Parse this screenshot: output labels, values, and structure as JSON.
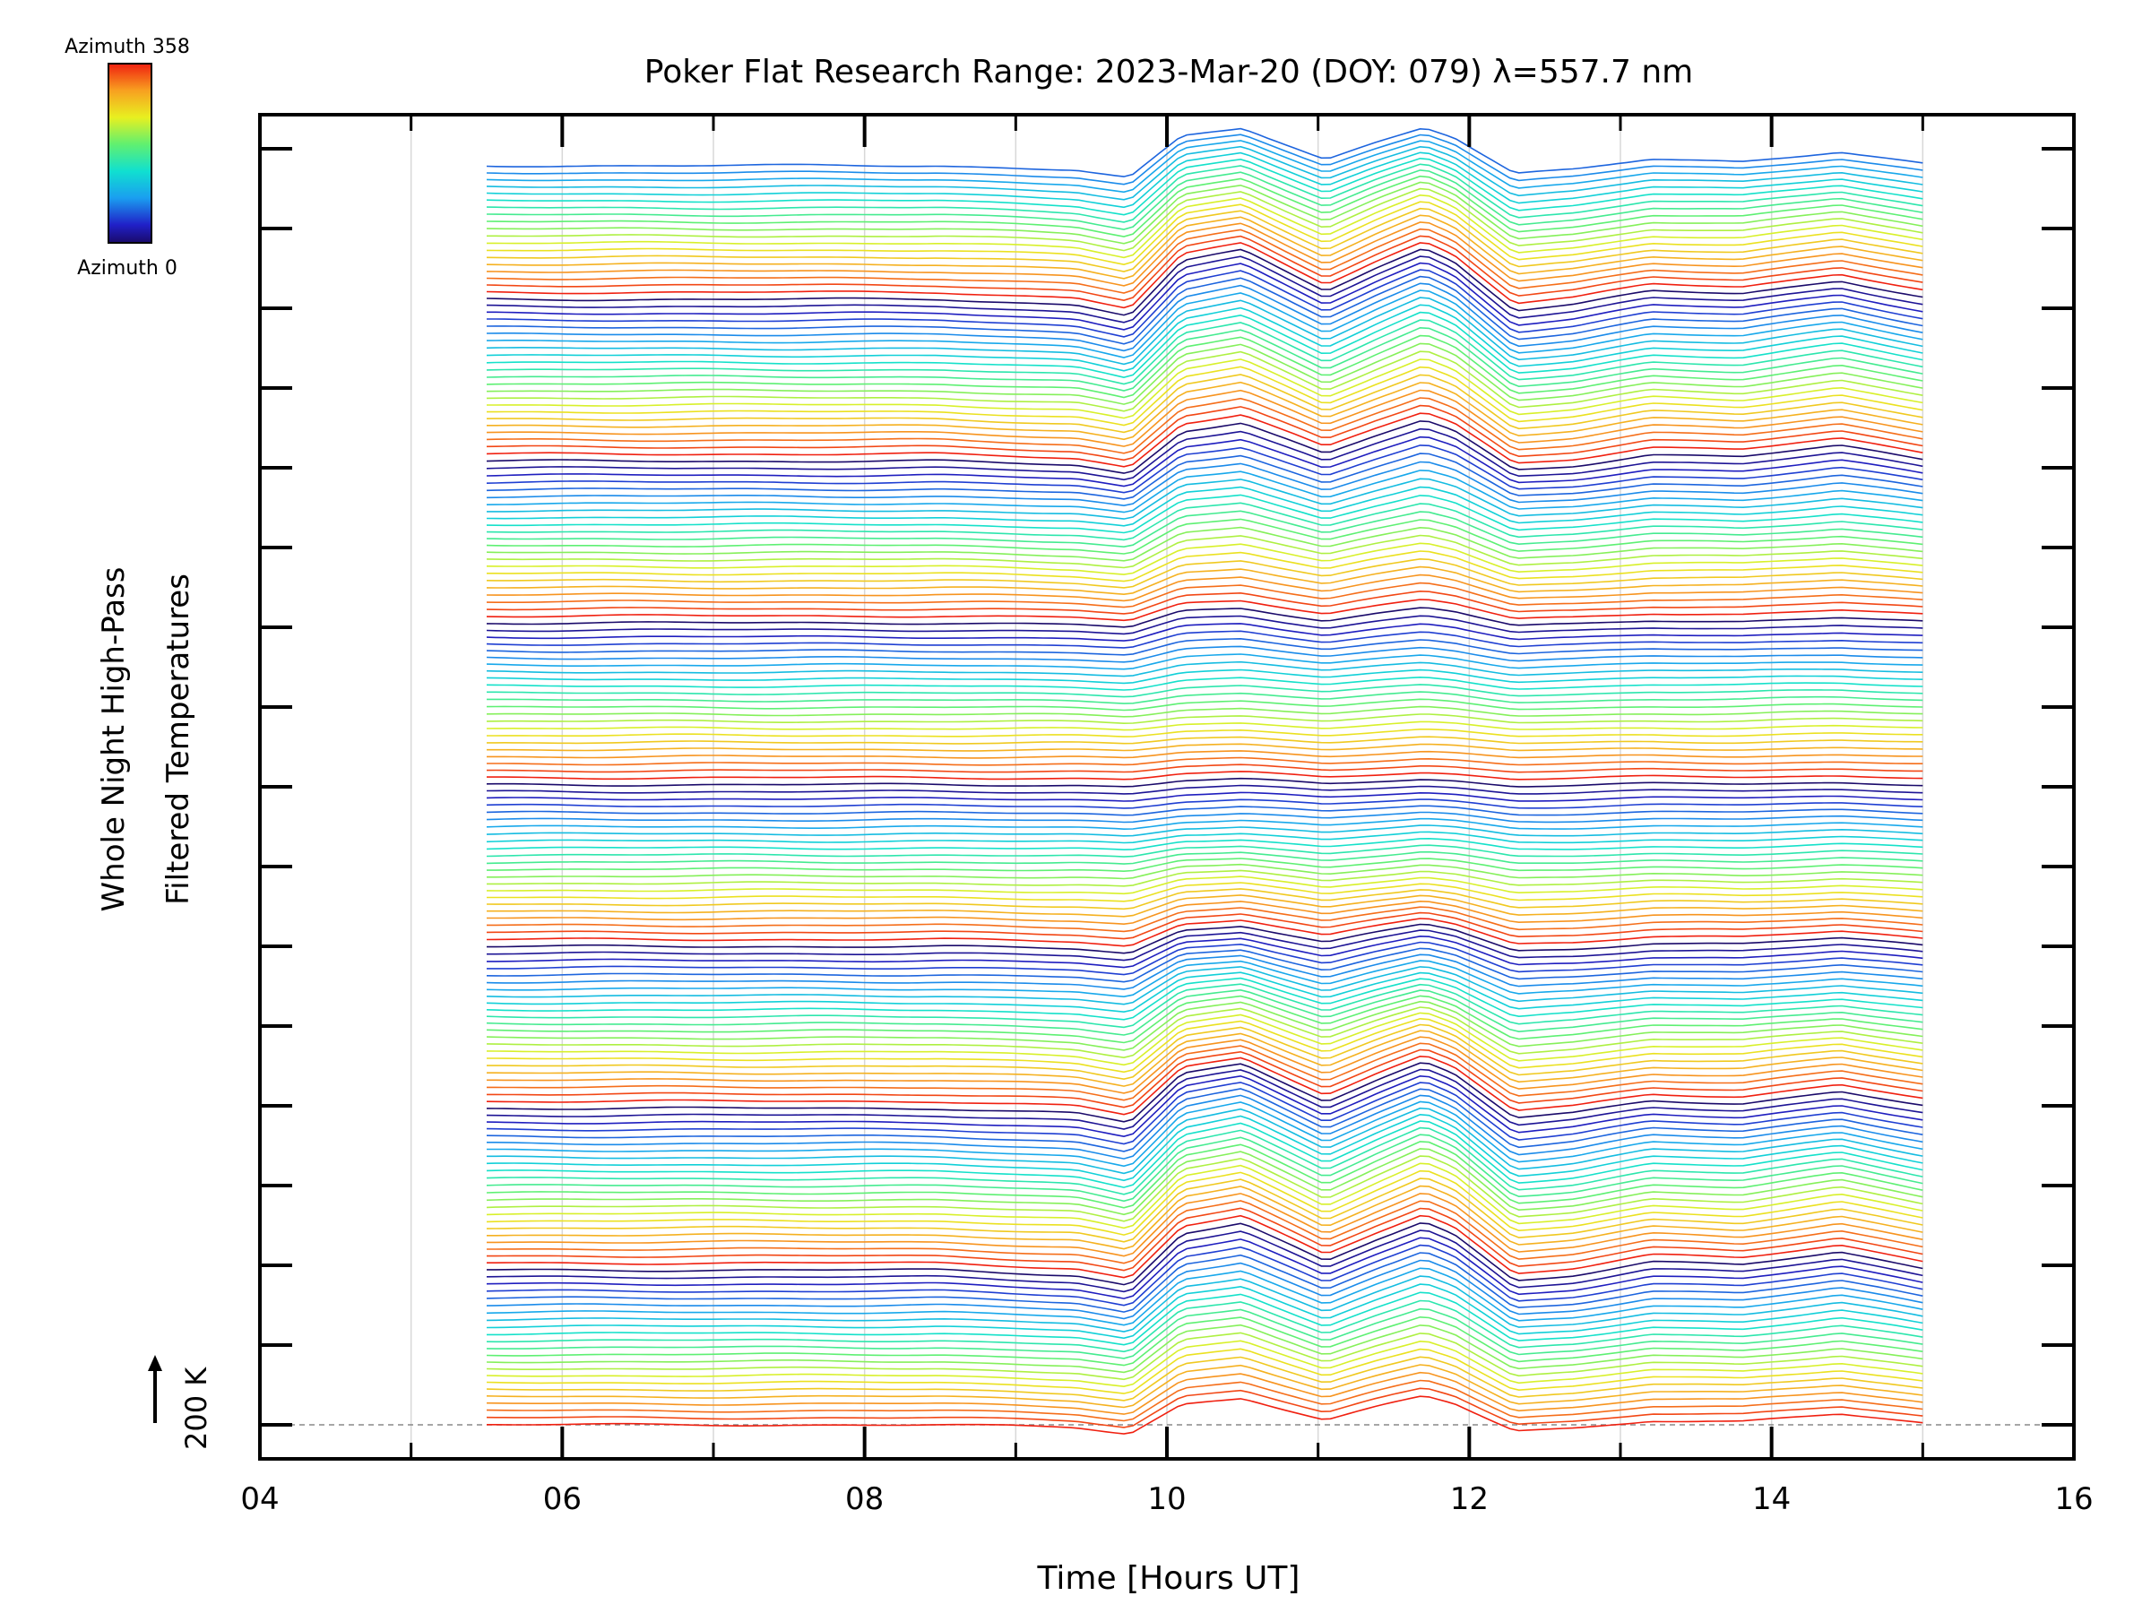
{
  "chart_data": {
    "type": "line",
    "title": "Poker Flat Research Range: 2023-Mar-20 (DOY: 079) λ=557.7 nm",
    "xlabel": "Time [Hours UT]",
    "ylabel_line1": "Whole Night High-Pass",
    "ylabel_line2": "Filtered Temperatures",
    "scale_label": "200 K",
    "xlim": [
      4,
      16
    ],
    "xticks": [
      4,
      6,
      8,
      10,
      12,
      14,
      16
    ],
    "xtick_labels": [
      "04",
      "06",
      "08",
      "10",
      "12",
      "14",
      "16"
    ],
    "x_minor_step": 1,
    "y_major_ticks": 16,
    "colorbar": {
      "top_label": "Azimuth 358",
      "bottom_label": "Azimuth 0",
      "colormap": "rainbow",
      "azimuth_range": [
        0,
        358
      ]
    },
    "data_time_range": [
      5.5,
      15.0
    ],
    "azimuth_step": 2,
    "series_count": 180,
    "offset_per_series_K": 60,
    "baseline_K": 0,
    "grid": "vertical lines at each hour (light gray)",
    "reference_baseline": "dashed horizontal at bottom series level",
    "profile_keypoints": [
      {
        "t": 5.5,
        "T": 0
      },
      {
        "t": 6.5,
        "T": 0
      },
      {
        "t": 7.5,
        "T": 0
      },
      {
        "t": 8.5,
        "T": 0
      },
      {
        "t": 9.4,
        "T": -20
      },
      {
        "t": 9.75,
        "T": -60
      },
      {
        "t": 10.1,
        "T": 140
      },
      {
        "t": 10.5,
        "T": 180
      },
      {
        "t": 11.05,
        "T": 30
      },
      {
        "t": 11.4,
        "T": 120
      },
      {
        "t": 11.7,
        "T": 190
      },
      {
        "t": 11.9,
        "T": 140
      },
      {
        "t": 12.3,
        "T": -40
      },
      {
        "t": 12.7,
        "T": -20
      },
      {
        "t": 13.2,
        "T": 30
      },
      {
        "t": 13.8,
        "T": 20
      },
      {
        "t": 14.45,
        "T": 70
      },
      {
        "t": 15.0,
        "T": 10
      }
    ]
  }
}
